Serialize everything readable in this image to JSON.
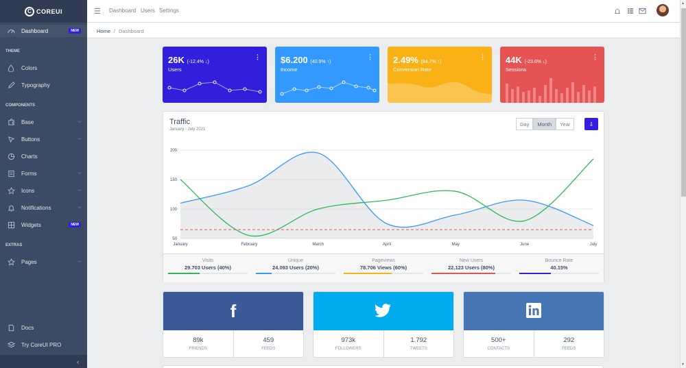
{
  "brand": {
    "name": "COREUI"
  },
  "sidebar": {
    "items": [
      {
        "label": "Dashboard",
        "icon": "speedometer-icon",
        "badge": "NEW"
      },
      {
        "section": "THEME"
      },
      {
        "label": "Colors",
        "icon": "drop-icon"
      },
      {
        "label": "Typography",
        "icon": "pencil-icon"
      },
      {
        "section": "COMPONENTS"
      },
      {
        "label": "Base",
        "icon": "puzzle-icon"
      },
      {
        "label": "Buttons",
        "icon": "cursor-icon"
      },
      {
        "label": "Charts",
        "icon": "chart-pie-icon"
      },
      {
        "label": "Forms",
        "icon": "notes-icon"
      },
      {
        "label": "Icons",
        "icon": "star-icon"
      },
      {
        "label": "Notifications",
        "icon": "bell-icon"
      },
      {
        "label": "Widgets",
        "icon": "calculator-icon",
        "badge": "NEW"
      },
      {
        "section": "EXTRAS"
      },
      {
        "label": "Pages",
        "icon": "star-icon"
      },
      {
        "label": "Docs",
        "icon": "description-icon"
      },
      {
        "label": "Try CoreUI PRO",
        "icon": "layers-icon"
      }
    ]
  },
  "header": {
    "nav": [
      "Dashboard",
      "Users",
      "Settings"
    ]
  },
  "breadcrumb": [
    "Home",
    "Dashboard"
  ],
  "widgets": [
    {
      "value": "26K",
      "delta": "(-12.4% ↓)",
      "label": "Users",
      "color": "#321fdb"
    },
    {
      "value": "$6.200",
      "delta": "(40.9% ↑)",
      "label": "Income",
      "color": "#39f"
    },
    {
      "value": "2.49%",
      "delta": "(84.7% ↑)",
      "label": "Conversion Rate",
      "color": "#f9b115"
    },
    {
      "value": "44K",
      "delta": "(-23.6% ↓)",
      "label": "Sessions",
      "color": "#e55353"
    }
  ],
  "traffic": {
    "title": "Traffic",
    "subtitle": "January - July 2021",
    "range_buttons": [
      "Day",
      "Month",
      "Year"
    ],
    "active_range": "Month",
    "stats": [
      {
        "label": "Visits",
        "value": "29.703 Users (40%)",
        "percent": 40,
        "color": "#2eb85c"
      },
      {
        "label": "Unique",
        "value": "24.093 Users (20%)",
        "percent": 20,
        "color": "#39f"
      },
      {
        "label": "Pageviews",
        "value": "78.706 Views (60%)",
        "percent": 60,
        "color": "#f9b115"
      },
      {
        "label": "New Users",
        "value": "22.123 Users (80%)",
        "percent": 80,
        "color": "#e55353"
      },
      {
        "label": "Bounce Rate",
        "value": "40.15%",
        "percent": 40,
        "color": "#321fdb"
      }
    ]
  },
  "chart_data": {
    "type": "line",
    "categories": [
      "January",
      "February",
      "March",
      "April",
      "May",
      "June",
      "July"
    ],
    "ylim": [
      50,
      200
    ],
    "yticks": [
      50,
      100,
      150,
      200
    ],
    "series": [
      {
        "values": [
          110,
          140,
          195,
          75,
          90,
          115,
          72
        ],
        "color": "#39f",
        "fill": true
      },
      {
        "values": [
          150,
          55,
          100,
          115,
          130,
          80,
          185
        ],
        "color": "#2eb85c",
        "fill": false
      },
      {
        "values": [
          65,
          65,
          65,
          65,
          65,
          65,
          65
        ],
        "color": "#e55353",
        "dashed": true
      }
    ]
  },
  "social": [
    {
      "network": "facebook",
      "icon": "facebook-icon",
      "color": "#3b5998",
      "stats": [
        {
          "value": "89k",
          "label": "friends"
        },
        {
          "value": "459",
          "label": "feeds"
        }
      ]
    },
    {
      "network": "twitter",
      "icon": "twitter-icon",
      "color": "#00aced",
      "stats": [
        {
          "value": "973k",
          "label": "followers"
        },
        {
          "value": "1.792",
          "label": "tweets"
        }
      ]
    },
    {
      "network": "linkedin",
      "icon": "linkedin-icon",
      "color": "#4875b4",
      "stats": [
        {
          "value": "500+",
          "label": "contacts"
        },
        {
          "value": "292",
          "label": "feeds"
        }
      ]
    }
  ]
}
